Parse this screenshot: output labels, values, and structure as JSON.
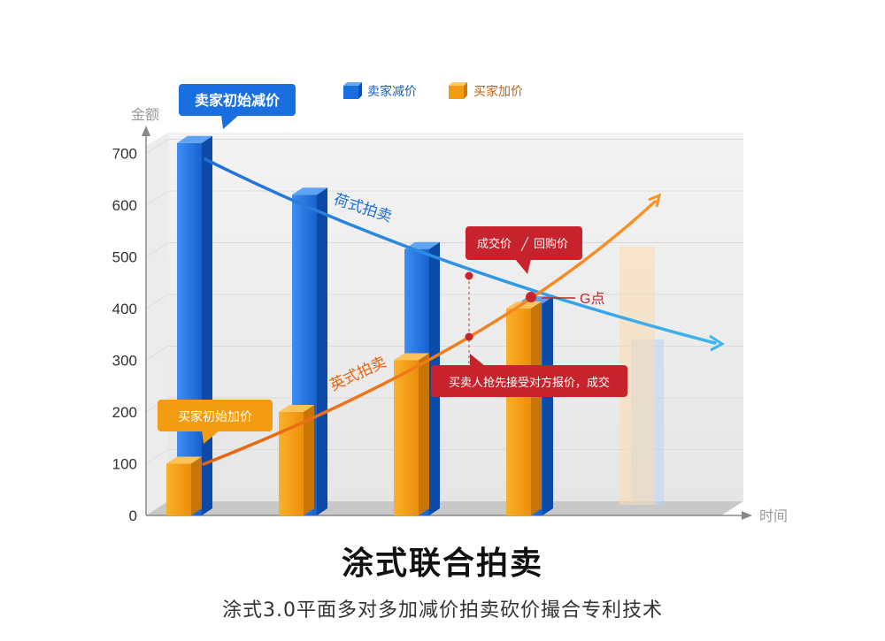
{
  "title": "涂式联合拍卖",
  "subtitle": "涂式3.0平面多对多加减价拍卖砍价撮合专利技术",
  "chart_data": {
    "type": "bar",
    "ylabel": "金额",
    "xlabel": "时间",
    "yticks": [
      0,
      100,
      200,
      300,
      400,
      500,
      600,
      700
    ],
    "ylim": [
      0,
      700
    ],
    "legend_position": "top",
    "series": [
      {
        "name": "卖家减价",
        "color": "#1a6fe0",
        "values": [
          720,
          620,
          515,
          410
        ]
      },
      {
        "name": "买家加价",
        "color": "#f39c12",
        "values": [
          100,
          200,
          300,
          400
        ]
      }
    ],
    "ghost_bars": [
      {
        "series": "卖家减价",
        "value": 320
      },
      {
        "series": "买家加价",
        "value": 500
      }
    ],
    "curves": [
      {
        "label": "荷式拍卖",
        "color": "#2f9be3",
        "direction": "down"
      },
      {
        "label": "英式拍卖",
        "color": "#ee7a1a",
        "direction": "up"
      }
    ],
    "annotations": {
      "seller_start": "卖家初始减价",
      "buyer_start": "买家初始加价",
      "deal_price": "成交价",
      "buyback_price": "回购价",
      "g_point": "G点",
      "early_accept": "买卖人抢先接受对方报价，成交"
    }
  }
}
